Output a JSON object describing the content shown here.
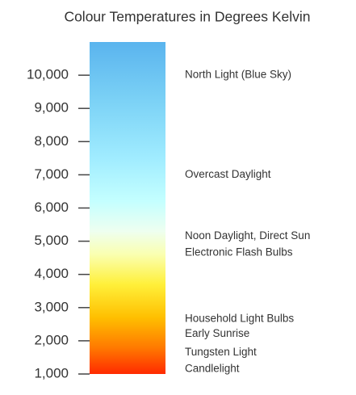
{
  "chart_data": {
    "type": "color-scale",
    "title": "Colour Temperatures in Degrees Kelvin",
    "ylim": [
      1000,
      11000
    ],
    "yticks": [
      {
        "value": 1000,
        "label": "1,000"
      },
      {
        "value": 2000,
        "label": "2,000"
      },
      {
        "value": 3000,
        "label": "3,000"
      },
      {
        "value": 4000,
        "label": "4,000"
      },
      {
        "value": 5000,
        "label": "5,000"
      },
      {
        "value": 6000,
        "label": "6,000"
      },
      {
        "value": 7000,
        "label": "7,000"
      },
      {
        "value": 8000,
        "label": "8,000"
      },
      {
        "value": 9000,
        "label": "9,000"
      },
      {
        "value": 10000,
        "label": "10,000"
      }
    ],
    "gradient": [
      {
        "value": 1000,
        "color": "#ff2a00"
      },
      {
        "value": 1800,
        "color": "#ff7a00"
      },
      {
        "value": 2700,
        "color": "#ffbf00"
      },
      {
        "value": 3700,
        "color": "#fff03a"
      },
      {
        "value": 4600,
        "color": "#faffb0"
      },
      {
        "value": 5300,
        "color": "#eefff0"
      },
      {
        "value": 6200,
        "color": "#c4ffff"
      },
      {
        "value": 7500,
        "color": "#a0ecff"
      },
      {
        "value": 9200,
        "color": "#7cd2f6"
      },
      {
        "value": 11000,
        "color": "#5ab4ee"
      }
    ],
    "annotations": [
      {
        "label": "North Light (Blue Sky)",
        "value": 10000
      },
      {
        "label": "Overcast Daylight",
        "value": 7000
      },
      {
        "label": "Noon Daylight, Direct Sun",
        "value": 5150
      },
      {
        "label": "Electronic Flash Bulbs",
        "value": 4650
      },
      {
        "label": "Household Light Bulbs",
        "value": 2650
      },
      {
        "label": "Early Sunrise",
        "value": 2200
      },
      {
        "label": "Tungsten Light",
        "value": 1650
      },
      {
        "label": "Candlelight",
        "value": 1150
      }
    ]
  }
}
